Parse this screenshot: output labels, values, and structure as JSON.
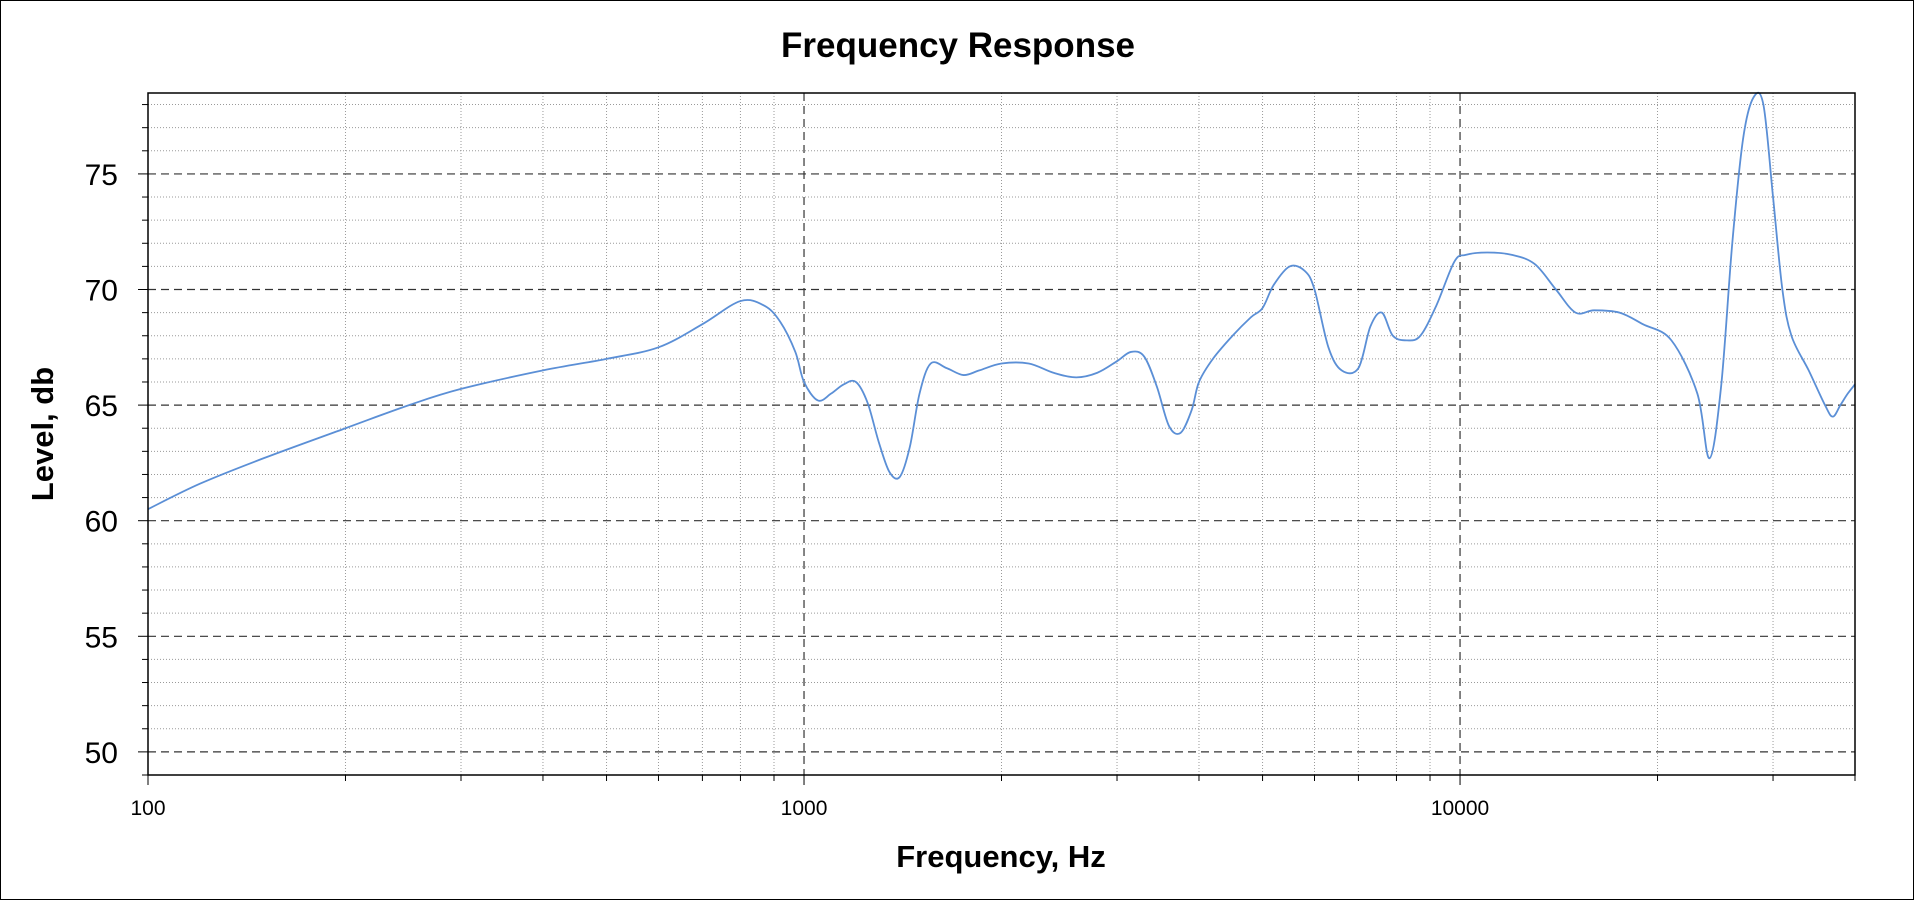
{
  "chart_data": {
    "type": "line",
    "title": "Frequency Response",
    "xlabel": "Frequency, Hz",
    "ylabel": "Level, db",
    "x_scale": "log",
    "xlim": [
      100,
      40000
    ],
    "ylim": [
      49,
      78.5
    ],
    "x_ticks": [
      "100",
      "1000",
      "10000"
    ],
    "y_ticks": [
      "50",
      "55",
      "60",
      "65",
      "70",
      "75"
    ],
    "grid": true,
    "line_color": "#5b8fd6",
    "series": [
      {
        "x": [
          100,
          120,
          150,
          200,
          250,
          300,
          400,
          500,
          600,
          700,
          800,
          870,
          920,
          970,
          1000,
          1050,
          1100,
          1150,
          1200,
          1250,
          1300,
          1350,
          1400,
          1450,
          1500,
          1560,
          1650,
          1750,
          1850,
          2000,
          2200,
          2400,
          2600,
          2800,
          3000,
          3150,
          3300,
          3450,
          3600,
          3750,
          3900,
          4000,
          4200,
          4500,
          4800,
          5000,
          5200,
          5500,
          5800,
          6000,
          6300,
          6600,
          7000,
          7300,
          7600,
          7900,
          8300,
          8700,
          9200,
          9800,
          10200,
          11000,
          12000,
          13000,
          14000,
          15000,
          16000,
          17500,
          19000,
          21000,
          23000,
          24000,
          25000,
          26000,
          27000,
          28000,
          29000,
          30000,
          31000,
          32000,
          34000,
          36000,
          37000,
          38000,
          39000,
          40000
        ],
        "values": [
          60.5,
          61.6,
          62.7,
          64.0,
          65.0,
          65.7,
          66.5,
          67.0,
          67.5,
          68.5,
          69.5,
          69.3,
          68.6,
          67.3,
          66.0,
          65.2,
          65.5,
          65.9,
          66.0,
          65.1,
          63.4,
          62.1,
          61.9,
          63.2,
          65.5,
          66.8,
          66.6,
          66.3,
          66.5,
          66.8,
          66.8,
          66.4,
          66.2,
          66.4,
          66.9,
          67.3,
          67.1,
          65.8,
          64.1,
          63.8,
          64.8,
          66.0,
          67.0,
          68.0,
          68.8,
          69.2,
          70.2,
          71.0,
          70.8,
          70.0,
          67.5,
          66.5,
          66.6,
          68.4,
          69.0,
          68.0,
          67.8,
          68.0,
          69.3,
          71.2,
          71.5,
          71.6,
          71.5,
          71.1,
          70.0,
          69.0,
          69.1,
          69.0,
          68.5,
          67.8,
          65.5,
          62.7,
          65.8,
          72.0,
          76.5,
          78.3,
          78.0,
          74.0,
          70.0,
          68.0,
          66.5,
          65.0,
          64.5,
          65.0,
          65.5,
          65.9
        ]
      }
    ]
  }
}
